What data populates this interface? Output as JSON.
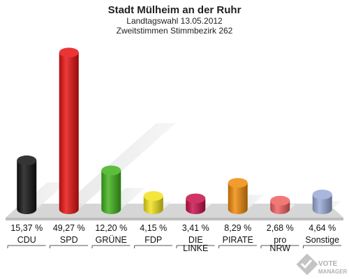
{
  "chart_data": {
    "type": "bar",
    "title": "Stadt Mülheim an der Ruhr",
    "subtitle": "Landtagswahl 13.05.2012",
    "subtitle2": "Zweitstimmen Stimmbezirk 262",
    "categories": [
      [
        "CDU"
      ],
      [
        "SPD"
      ],
      [
        "GRÜNE"
      ],
      [
        "FDP"
      ],
      [
        "DIE",
        "LINKE"
      ],
      [
        "PIRATE"
      ],
      [
        "pro",
        "NRW"
      ],
      [
        "Sonstige"
      ]
    ],
    "values": [
      15.37,
      49.27,
      12.2,
      4.15,
      3.41,
      8.29,
      2.68,
      4.64
    ],
    "value_labels": [
      "15,37 %",
      "49,27 %",
      "12,20 %",
      "4,15 %",
      "3,41 %",
      "8,29 %",
      "2,68 %",
      "4,64 %"
    ],
    "colors": [
      "#111111",
      "#e81010",
      "#3fb21a",
      "#f2e21a",
      "#c8104a",
      "#f08a08",
      "#f06060",
      "#9aaad8"
    ],
    "ylim": [
      0,
      50
    ],
    "legend": "none",
    "grid": false
  },
  "logo": {
    "line1": "VOTE",
    "line2": "MANAGER"
  }
}
